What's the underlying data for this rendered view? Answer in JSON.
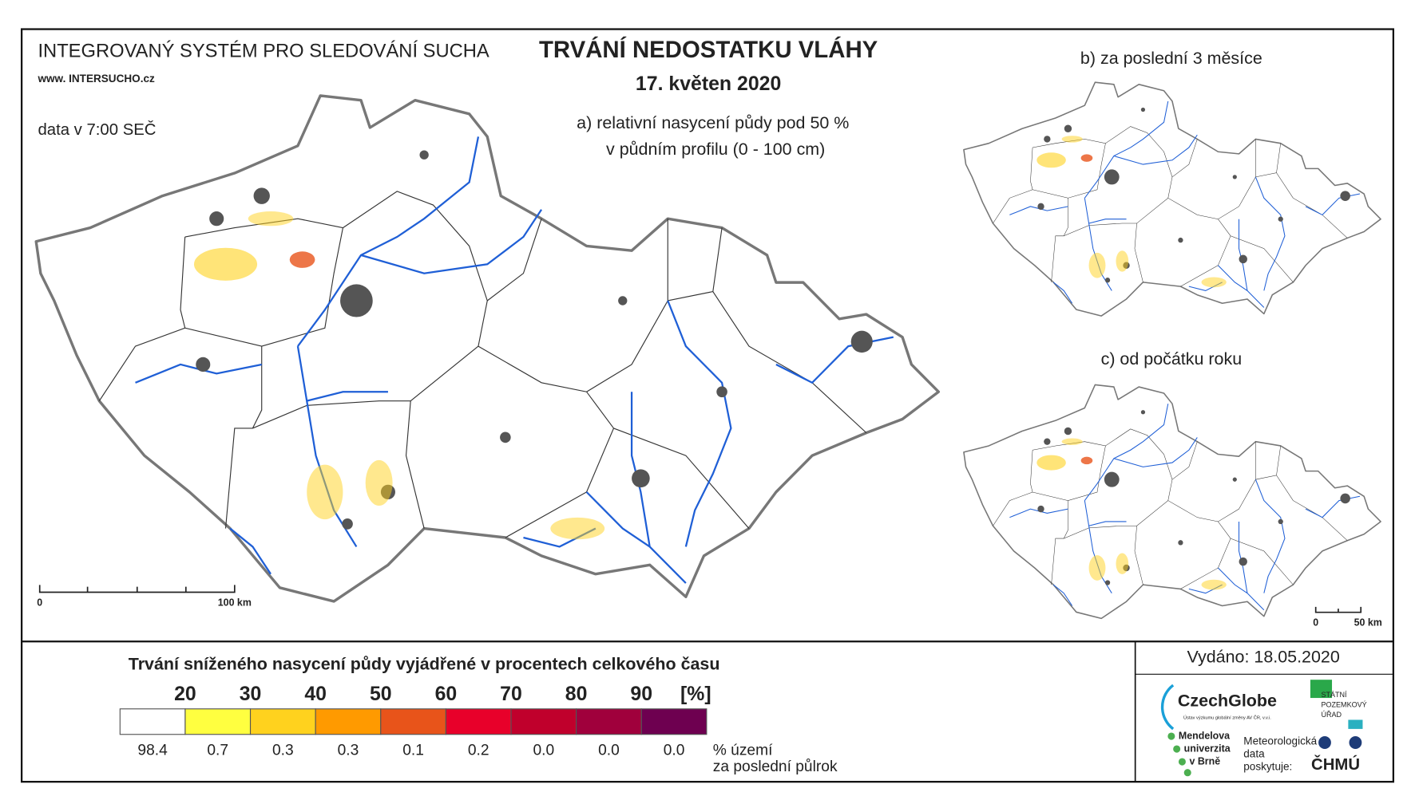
{
  "header": {
    "system": "INTEGROVANÝ SYSTÉM PRO SLEDOVÁNÍ SUCHA",
    "website": "www. INTERSUCHO.cz",
    "data_time": "data v 7:00 SEČ",
    "title": "TRVÁNÍ NEDOSTATKU VLÁHY",
    "date": "17. květen 2020"
  },
  "panels": {
    "a": [
      "a) relativní nasycení půdy pod 50 %",
      "v půdním profilu (0 - 100 cm)"
    ],
    "b": "b) za poslední 3 měsíce",
    "c": "c) od počátku roku"
  },
  "scale_bars": {
    "main": {
      "start": "0",
      "end": "100 km"
    },
    "small": {
      "start": "0",
      "end": "50 km"
    }
  },
  "legend": {
    "title": "Trvání sníženého nasycení půdy vyjádřené v procentech celkového času",
    "thresholds": [
      "20",
      "30",
      "40",
      "50",
      "60",
      "70",
      "80",
      "90"
    ],
    "unit": "[%]",
    "classes": [
      {
        "color": "#ffffff",
        "share": "98.4"
      },
      {
        "color": "#ffff40",
        "share": "0.7"
      },
      {
        "color": "#ffd21e",
        "share": "0.3"
      },
      {
        "color": "#ff9a00",
        "share": "0.3"
      },
      {
        "color": "#e8541a",
        "share": "0.1"
      },
      {
        "color": "#e8002a",
        "share": "0.2"
      },
      {
        "color": "#c0002c",
        "share": "0.0"
      },
      {
        "color": "#a0003c",
        "share": "0.0"
      },
      {
        "color": "#6e0050",
        "share": "0.0"
      }
    ],
    "share_label": [
      "% území",
      "za poslední půlrok"
    ]
  },
  "footer": {
    "issued": "Vydáno: 18.05.2020",
    "logos": {
      "czechglobe": "CzechGlobe",
      "czechglobe_sub": "Ústav výzkumu globální změny AV ČR, v.v.i.",
      "spu": [
        "STÁTNÍ",
        "POZEMKOVÝ",
        "ÚŘAD"
      ],
      "mendelu": [
        "Mendelova",
        "univerzita",
        "v Brně"
      ],
      "meteo": [
        "Meteorologická",
        "data",
        "poskytuje:"
      ],
      "chmu": "ČHMÚ"
    }
  }
}
